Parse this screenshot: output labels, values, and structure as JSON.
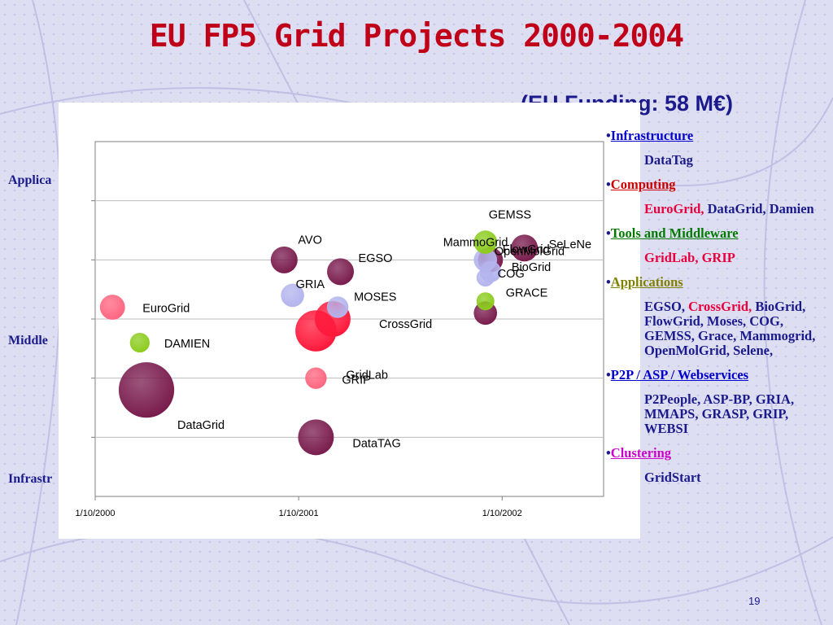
{
  "slide": {
    "title": "EU FP5 Grid Projects 2000-2004",
    "subtitle": "(EU Funding: 58 M€)",
    "page_number": "19",
    "side_labels": [
      "Applica",
      "Middle",
      "Infrastr"
    ]
  },
  "categories": [
    {
      "bullet": "•",
      "heading": "Infrastructure",
      "heading_color": "#0000cc",
      "items": [
        {
          "text": "DataTag",
          "color": "#1a1a8c"
        }
      ]
    },
    {
      "bullet": "•",
      "heading": "Computing",
      "heading_color": "#cc0000",
      "items": [
        {
          "text": "EuroGrid,",
          "color": "#e8003c"
        },
        {
          "text": " DataGrid, Damien",
          "color": "#1a1a8c"
        }
      ]
    },
    {
      "bullet": "•",
      "heading": "Tools and Middleware",
      "heading_color": "#007a00",
      "items": [
        {
          "text": "GridLab, GRIP",
          "color": "#e8003c"
        }
      ]
    },
    {
      "bullet": "•",
      "heading": "Applications",
      "heading_color": "#808000",
      "items": [
        {
          "text": "EGSO, ",
          "color": "#1a1a8c"
        },
        {
          "text": "CrossGrid,",
          "color": "#e8003c"
        },
        {
          "text": " BioGrid, FlowGrid, Moses, COG, GEMSS, Grace, Mammogrid, OpenMolGrid, Selene,",
          "color": "#1a1a8c"
        }
      ]
    },
    {
      "bullet": "•",
      "heading": "P2P / ASP / Webservices",
      "heading_color": "#0000cc",
      "items": [
        {
          "text": "P2People, ASP-BP, GRIA, MMAPS, GRASP, GRIP, WEBSI",
          "color": "#1a1a8c"
        }
      ]
    },
    {
      "bullet": "•",
      "heading": "Clustering",
      "heading_color": "#cc00cc",
      "items": [
        {
          "text": "GridStart",
          "color": "#1a1a8c"
        }
      ]
    }
  ],
  "chart_data": {
    "type": "scatter",
    "subtype": "bubble",
    "title": "",
    "xlabel": "",
    "ylabel": "",
    "x_ticks": [
      "1/10/2000",
      "1/10/2001",
      "1/10/2002"
    ],
    "xlim": [
      "2000-10-01",
      "2003-04-01"
    ],
    "ylim": [
      0,
      6
    ],
    "y_gridlines": [
      1,
      2,
      3,
      4,
      5
    ],
    "grid": true,
    "legend": "none",
    "colors": {
      "maroon": "#7a1d4e",
      "red": "#ff1a3c",
      "pink": "#ff6680",
      "green": "#8ccc1e",
      "lavender": "#b4b4ee"
    },
    "points": [
      {
        "label": "EuroGrid",
        "x": "2000-11-01",
        "y": 3.2,
        "size": 0.7,
        "color": "pink"
      },
      {
        "label": "DAMIEN",
        "x": "2000-12-20",
        "y": 2.6,
        "size": 0.55,
        "color": "green"
      },
      {
        "label": "DataGrid",
        "x": "2001-01-01",
        "y": 1.8,
        "size": 1.55,
        "color": "maroon"
      },
      {
        "label": "AVO",
        "x": "2001-09-05",
        "y": 4.0,
        "size": 0.75,
        "color": "maroon"
      },
      {
        "label": "GRIA",
        "x": "2001-09-20",
        "y": 3.4,
        "size": 0.65,
        "color": "lavender"
      },
      {
        "label": "EGSO",
        "x": "2001-12-15",
        "y": 3.8,
        "size": 0.75,
        "color": "maroon"
      },
      {
        "label": "MOSES",
        "x": "2001-12-10",
        "y": 3.2,
        "size": 0.6,
        "color": "lavender"
      },
      {
        "label": "CrossGrid",
        "x": "2001-12-01",
        "y": 3.0,
        "size": 1.0,
        "color": "red"
      },
      {
        "label": "GridLab",
        "x": "2001-11-01",
        "y": 2.8,
        "size": 1.15,
        "color": "red"
      },
      {
        "label": "GRIP",
        "x": "2001-11-01",
        "y": 2.0,
        "size": 0.6,
        "color": "pink"
      },
      {
        "label": "DataTAG",
        "x": "2001-11-01",
        "y": 1.0,
        "size": 1.0,
        "color": "maroon"
      },
      {
        "label": "MammoGrid",
        "x": "2002-09-01",
        "y": 4.0,
        "size": 0.65,
        "color": "lavender"
      },
      {
        "label": "GEMSS",
        "x": "2002-09-01",
        "y": 4.3,
        "size": 0.65,
        "color": "green"
      },
      {
        "label": "SeLeNe",
        "x": "2002-11-10",
        "y": 4.2,
        "size": 0.75,
        "color": "maroon"
      },
      {
        "label": "BioGrid",
        "x": "2002-09-10",
        "y": 3.8,
        "size": 0.6,
        "color": "lavender"
      },
      {
        "label": "OpenMolGrid",
        "x": "2002-09-10",
        "y": 4.0,
        "size": 0.7,
        "color": "maroon"
      },
      {
        "label": "FlowGrid",
        "x": "2002-09-01",
        "y": 3.7,
        "size": 0.5,
        "color": "lavender"
      },
      {
        "label": "COG",
        "x": "2002-09-01",
        "y": 3.3,
        "size": 0.5,
        "color": "green"
      },
      {
        "label": "GRACE",
        "x": "2002-09-01",
        "y": 3.1,
        "size": 0.65,
        "color": "maroon"
      }
    ]
  }
}
